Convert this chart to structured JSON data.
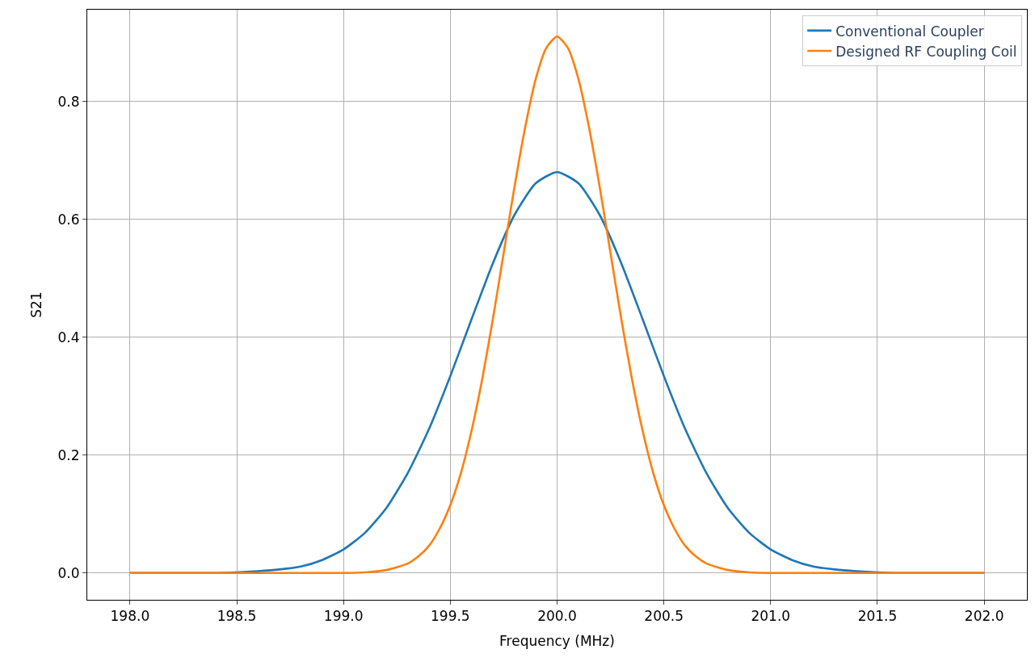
{
  "chart_data": {
    "type": "line",
    "xlabel": "Frequency (MHz)",
    "ylabel": "S21",
    "xlim": [
      197.8,
      202.2
    ],
    "xticks": [
      {
        "value": 198,
        "label": "198.0"
      },
      {
        "value": 198.5,
        "label": "198.5"
      },
      {
        "value": 199,
        "label": "199.0"
      },
      {
        "value": 199.5,
        "label": "199.5"
      },
      {
        "value": 200,
        "label": "200.0"
      },
      {
        "value": 200.5,
        "label": "200.5"
      },
      {
        "value": 201,
        "label": "201.0"
      },
      {
        "value": 201.5,
        "label": "201.5"
      },
      {
        "value": 202,
        "label": "202.0"
      }
    ],
    "ylim": [
      -0.0455,
      0.9555
    ],
    "yticks": [
      {
        "value": 0,
        "label": "0.0"
      },
      {
        "value": 0.2,
        "label": "0.2"
      },
      {
        "value": 0.4,
        "label": "0.4"
      },
      {
        "value": 0.6,
        "label": "0.6"
      },
      {
        "value": 0.8,
        "label": "0.8"
      }
    ],
    "grid": true,
    "legend": "top right",
    "line_style": "solid",
    "series": [
      {
        "name": "Conventional Coupler",
        "color": "#1f77b4",
        "x": [
          198,
          198.4,
          198.5,
          198.6,
          198.7,
          198.8,
          198.9,
          199.0,
          199.1,
          199.2,
          199.3,
          199.4,
          199.5,
          199.6,
          199.7,
          199.8,
          199.9,
          200.0,
          200.1,
          200.2,
          200.3,
          200.4,
          200.5,
          200.6,
          200.7,
          200.8,
          200.9,
          201.0,
          201.1,
          201.2,
          201.3,
          201.4,
          201.5,
          201.6,
          202
        ],
        "values": [
          0,
          0,
          0.001,
          0.003,
          0.006,
          0.011,
          0.022,
          0.04,
          0.068,
          0.11,
          0.169,
          0.244,
          0.334,
          0.431,
          0.526,
          0.607,
          0.661,
          0.68,
          0.661,
          0.607,
          0.526,
          0.431,
          0.334,
          0.244,
          0.169,
          0.11,
          0.068,
          0.04,
          0.022,
          0.011,
          0.006,
          0.003,
          0.001,
          0,
          0
        ]
      },
      {
        "name": "Designed RF Coupling Coil",
        "color": "#ff7f0e",
        "x": [
          198,
          199.0,
          199.1,
          199.2,
          199.3,
          199.35,
          199.4,
          199.45,
          199.5,
          199.55,
          199.6,
          199.65,
          199.7,
          199.75,
          199.8,
          199.85,
          199.9,
          199.95,
          200.0,
          200.05,
          200.1,
          200.15,
          200.2,
          200.25,
          200.3,
          200.35,
          200.4,
          200.45,
          200.5,
          200.55,
          200.6,
          200.65,
          200.7,
          200.8,
          200.9,
          201.0,
          202
        ],
        "values": [
          0,
          0,
          0.001,
          0.005,
          0.016,
          0.028,
          0.046,
          0.075,
          0.115,
          0.17,
          0.242,
          0.33,
          0.432,
          0.543,
          0.654,
          0.755,
          0.838,
          0.891,
          0.91,
          0.891,
          0.838,
          0.755,
          0.654,
          0.543,
          0.432,
          0.33,
          0.242,
          0.17,
          0.115,
          0.075,
          0.046,
          0.028,
          0.016,
          0.005,
          0.001,
          0,
          0
        ]
      }
    ]
  }
}
